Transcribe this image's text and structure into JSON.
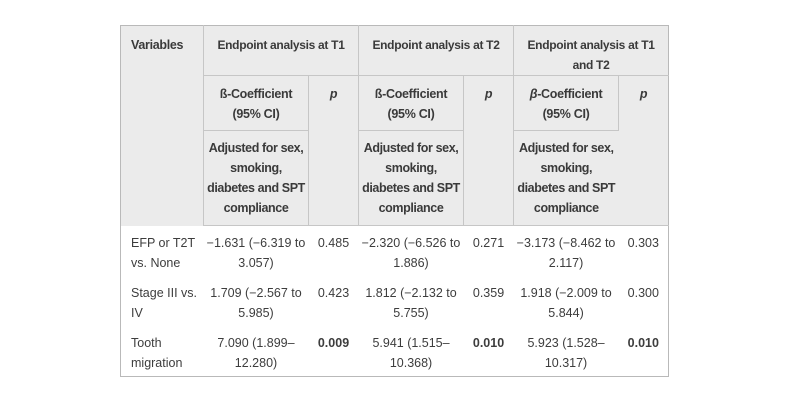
{
  "colors": {
    "header_bg": "#ebebeb",
    "border": "#c6c6c6",
    "text": "#3d3d3d",
    "background": "#ffffff"
  },
  "table": {
    "variables_header": "Variables",
    "groups": [
      {
        "title": "Endpoint analysis at T1",
        "beta": "ß",
        "coef_suffix": "-Coefficient",
        "ci": "(95% CI)",
        "p_label": "p",
        "adjusted": "Adjusted for sex,\nsmoking,\ndiabetes and SPT\ncompliance"
      },
      {
        "title": "Endpoint analysis at T2",
        "beta": "ß",
        "coef_suffix": "-Coefficient",
        "ci": "(95% CI)",
        "p_label": "p",
        "adjusted": "Adjusted for sex,\nsmoking,\ndiabetes and SPT\ncompliance"
      },
      {
        "title": "Endpoint analysis at T1\nand T2",
        "beta": "β",
        "coef_suffix": "-Coefficient",
        "ci": "(95% CI)",
        "p_label": "p",
        "adjusted": "Adjusted for sex,\nsmoking,\ndiabetes and SPT\ncompliance"
      }
    ],
    "rows": [
      {
        "variable": "EFP or T2T\nvs. None",
        "coef1": "−1.631 (−6.319 to\n3.057)",
        "p1": "0.485",
        "coef2": "−2.320 (−6.526 to\n1.886)",
        "p2": "0.271",
        "coef3": "−3.173 (−8.462 to\n2.117)",
        "p3": "0.303"
      },
      {
        "variable": "Stage III vs.\nIV",
        "coef1": "1.709 (−2.567 to\n5.985)",
        "p1": "0.423",
        "coef2": "1.812 (−2.132 to\n5.755)",
        "p2": "0.359",
        "coef3": "1.918 (−2.009 to\n5.844)",
        "p3": "0.300"
      },
      {
        "variable": "Tooth\nmigration",
        "coef1": "7.090 (1.899–\n12.280)",
        "p1": "0.009",
        "coef2": "5.941 (1.515–\n10.368)",
        "p2": "0.010",
        "coef3": "5.923 (1.528–\n10.317)",
        "p3": "0.010"
      }
    ]
  }
}
